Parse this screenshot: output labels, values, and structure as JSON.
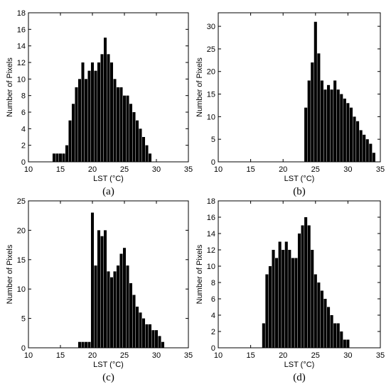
{
  "chart_data": [
    {
      "type": "bar",
      "caption": "(a)",
      "xlabel": "LST (°C)",
      "ylabel": "Number of Pixels",
      "xlim": [
        10,
        35
      ],
      "ylim": [
        0,
        18
      ],
      "xticks": [
        10,
        15,
        20,
        25,
        30,
        35
      ],
      "yticks": [
        0,
        2,
        4,
        6,
        8,
        10,
        12,
        14,
        16,
        18
      ],
      "grid": false,
      "x": [
        14,
        14.5,
        15,
        15.5,
        16,
        16.5,
        17,
        17.5,
        18,
        18.5,
        19,
        19.5,
        20,
        20.5,
        21,
        21.5,
        22,
        22.5,
        23,
        23.5,
        24,
        24.5,
        25,
        25.5,
        26,
        26.5,
        27,
        27.5,
        28,
        28.5,
        29
      ],
      "values": [
        1,
        1,
        1,
        1,
        2,
        5,
        7,
        9,
        10,
        12,
        10,
        11,
        12,
        11,
        12,
        13,
        15,
        13,
        12,
        10,
        9,
        9,
        8,
        8,
        7,
        6,
        5,
        4,
        3,
        2,
        1
      ]
    },
    {
      "type": "bar",
      "caption": "(b)",
      "xlabel": "LST (°C)",
      "ylabel": "Number of Pixels",
      "xlim": [
        10,
        35
      ],
      "ylim": [
        0,
        33
      ],
      "xticks": [
        10,
        15,
        20,
        25,
        30,
        35
      ],
      "yticks": [
        0,
        5,
        10,
        15,
        20,
        25,
        30
      ],
      "grid": false,
      "x": [
        23.5,
        24,
        24.5,
        25,
        25.5,
        26,
        26.5,
        27,
        27.5,
        28,
        28.5,
        29,
        29.5,
        30,
        30.5,
        31,
        31.5,
        32,
        32.5,
        33,
        33.5,
        34
      ],
      "values": [
        12,
        18,
        22,
        31,
        24,
        18,
        16,
        17,
        16,
        18,
        16,
        15,
        14,
        13,
        12,
        10,
        9,
        7,
        6,
        5,
        4,
        2
      ]
    },
    {
      "type": "bar",
      "caption": "(c)",
      "xlabel": "LST (°C)",
      "ylabel": "Number of Pixels",
      "xlim": [
        10,
        35
      ],
      "ylim": [
        0,
        25
      ],
      "xticks": [
        10,
        15,
        20,
        25,
        30,
        35
      ],
      "yticks": [
        0,
        5,
        10,
        15,
        20,
        25
      ],
      "grid": false,
      "x": [
        18,
        18.5,
        19,
        19.5,
        20,
        20.5,
        21,
        21.5,
        22,
        22.5,
        23,
        23.5,
        24,
        24.5,
        25,
        25.5,
        26,
        26.5,
        27,
        27.5,
        28,
        28.5,
        29,
        29.5,
        30,
        30.5,
        31
      ],
      "values": [
        1,
        1,
        1,
        1,
        23,
        14,
        20,
        19,
        20,
        13,
        12,
        13,
        14,
        16,
        17,
        14,
        11,
        9,
        7,
        6,
        5,
        4,
        4,
        3,
        3,
        2,
        1
      ]
    },
    {
      "type": "bar",
      "caption": "(d)",
      "xlabel": "LST (°C)",
      "ylabel": "Number of Pixels",
      "xlim": [
        10,
        35
      ],
      "ylim": [
        0,
        18
      ],
      "xticks": [
        10,
        15,
        20,
        25,
        30,
        35
      ],
      "yticks": [
        0,
        2,
        4,
        6,
        8,
        10,
        12,
        14,
        16,
        18
      ],
      "grid": false,
      "x": [
        17,
        17.5,
        18,
        18.5,
        19,
        19.5,
        20,
        20.5,
        21,
        21.5,
        22,
        22.5,
        23,
        23.5,
        24,
        24.5,
        25,
        25.5,
        26,
        26.5,
        27,
        27.5,
        28,
        28.5,
        29,
        29.5,
        30
      ],
      "values": [
        3,
        9,
        10,
        12,
        11,
        13,
        12,
        13,
        12,
        11,
        11,
        14,
        15,
        16,
        15,
        12,
        9,
        8,
        7,
        6,
        5,
        4,
        3,
        3,
        2,
        1,
        1
      ]
    }
  ]
}
